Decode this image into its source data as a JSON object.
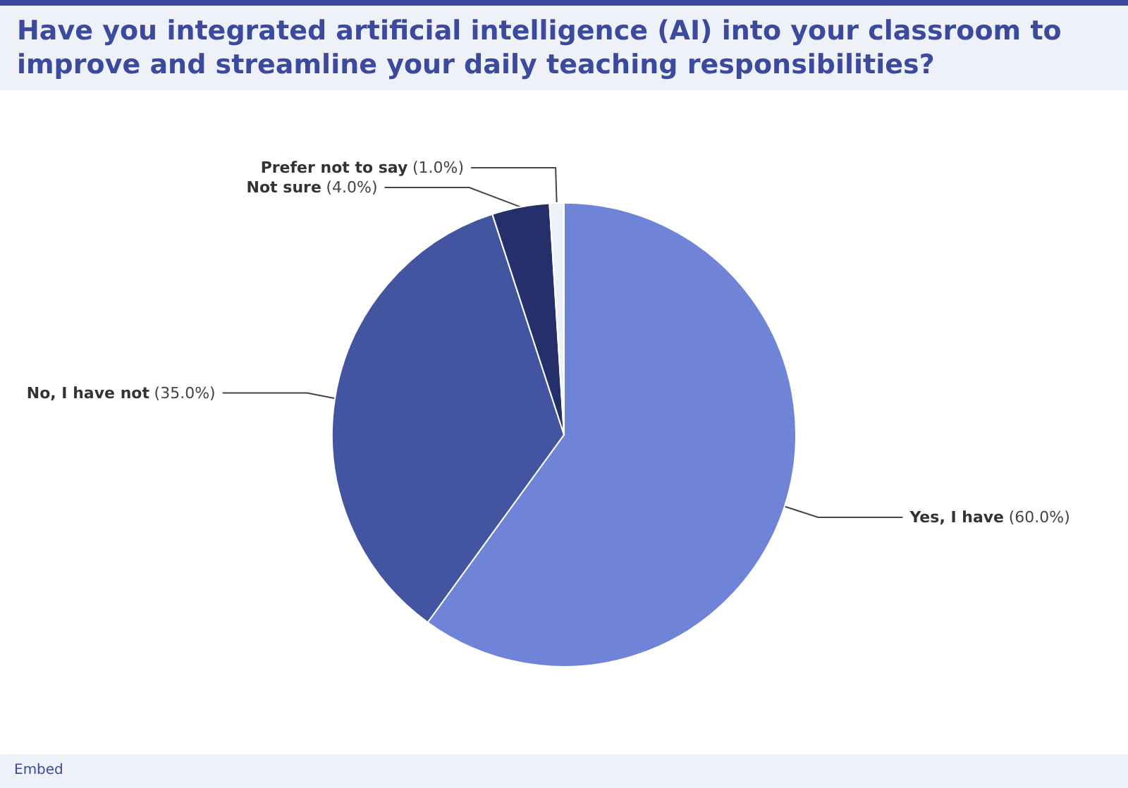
{
  "chart_data": {
    "type": "pie",
    "title": "Have you integrated artificial intelligence (AI) into your classroom to improve and streamline your daily teaching responsibilities?",
    "categories": [
      "Yes, I have",
      "No, I have not",
      "Not sure",
      "Prefer not to say"
    ],
    "values": [
      60,
      35,
      4,
      1
    ],
    "colors": [
      "#6f84d6",
      "#4355a0",
      "#25306b",
      "#eef1f8"
    ],
    "value_labels": [
      "(60.0%)",
      "(35.0%)",
      "(4.0%)",
      "(1.0%)"
    ],
    "legend": false,
    "annotations": [
      "Embed"
    ]
  }
}
